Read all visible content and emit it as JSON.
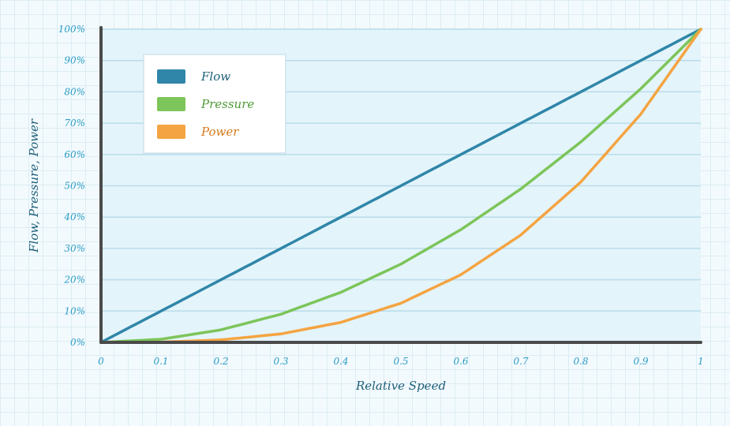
{
  "chart_data": {
    "type": "line",
    "title": "",
    "xlabel": "Relative Speed",
    "ylabel": "Flow, Pressure, Power",
    "xlim": [
      0,
      1
    ],
    "ylim": [
      0,
      100
    ],
    "x_ticks": [
      "0",
      "0.1",
      "0.2",
      "0.3",
      "0.4",
      "0.5",
      "0.6",
      "0.7",
      "0.8",
      "0.9",
      "1"
    ],
    "y_ticks": [
      "0%",
      "10%",
      "20%",
      "30%",
      "40%",
      "50%",
      "60%",
      "70%",
      "80%",
      "90%",
      "100%"
    ],
    "grid": "horizontal",
    "legend_position": "top-left",
    "x": [
      0,
      0.1,
      0.2,
      0.3,
      0.4,
      0.5,
      0.6,
      0.7,
      0.8,
      0.9,
      1
    ],
    "series": [
      {
        "name": "Flow",
        "color": "#2f86a8",
        "text_color": "#1f5f7a",
        "values": [
          0,
          10,
          20,
          30,
          40,
          50,
          60,
          70,
          80,
          90,
          100
        ]
      },
      {
        "name": "Pressure",
        "color": "#7cc55a",
        "text_color": "#4f9a35",
        "values": [
          0,
          1,
          4,
          9,
          16,
          25,
          36,
          49,
          64,
          81,
          100
        ]
      },
      {
        "name": "Power",
        "color": "#f4a442",
        "text_color": "#d67a1c",
        "values": [
          0,
          0.1,
          0.8,
          2.7,
          6.4,
          12.5,
          21.6,
          34.3,
          51.2,
          72.9,
          100
        ]
      }
    ]
  }
}
